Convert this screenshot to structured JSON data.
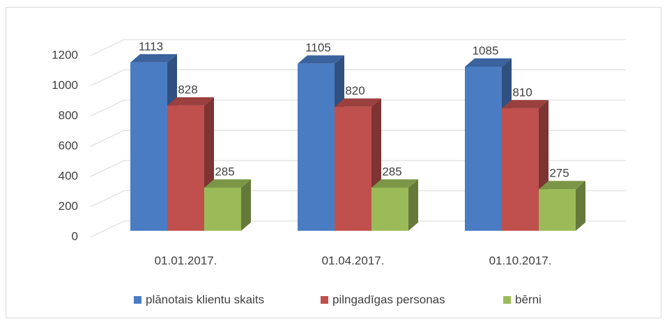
{
  "chart_data": {
    "type": "bar3d",
    "categories": [
      "01.01.2017.",
      "01.04.2017.",
      "01.10.2017."
    ],
    "series": [
      {
        "name": "plānotais klientu skaits",
        "color": "#4a7cc4",
        "values": [
          1113,
          1105,
          1085
        ]
      },
      {
        "name": "pilngadīgas personas",
        "color": "#c0504d",
        "values": [
          828,
          820,
          810
        ]
      },
      {
        "name": "bērni",
        "color": "#9bbb59",
        "values": [
          285,
          285,
          275
        ]
      }
    ],
    "ylim": [
      0,
      1200
    ],
    "yticks": [
      0,
      200,
      400,
      600,
      800,
      1000,
      1200
    ],
    "grid": true,
    "legend": "bottom"
  }
}
